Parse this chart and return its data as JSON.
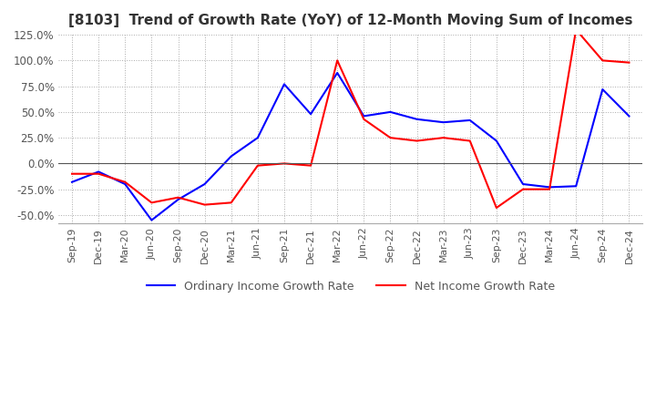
{
  "title": "[8103]  Trend of Growth Rate (YoY) of 12-Month Moving Sum of Incomes",
  "title_fontsize": 11,
  "ylim": [
    -0.58,
    0.145
  ],
  "yticks": [
    -0.5,
    -0.25,
    0.0,
    0.25,
    0.5,
    0.75,
    1.0,
    1.25
  ],
  "background_color": "#ffffff",
  "grid_color": "#aaaaaa",
  "ordinary_color": "#0000ff",
  "net_color": "#ff0000",
  "legend_labels": [
    "Ordinary Income Growth Rate",
    "Net Income Growth Rate"
  ],
  "dates": [
    "Sep-19",
    "Dec-19",
    "Mar-20",
    "Jun-20",
    "Sep-20",
    "Dec-20",
    "Mar-21",
    "Jun-21",
    "Sep-21",
    "Dec-21",
    "Mar-22",
    "Jun-22",
    "Sep-22",
    "Dec-22",
    "Mar-23",
    "Jun-23",
    "Sep-23",
    "Dec-23",
    "Mar-24",
    "Jun-24",
    "Sep-24",
    "Dec-24"
  ],
  "ordinary": [
    -0.18,
    -0.08,
    -0.2,
    -0.55,
    -0.35,
    -0.2,
    0.07,
    0.25,
    0.77,
    0.48,
    0.88,
    0.46,
    0.5,
    0.43,
    0.4,
    0.42,
    0.22,
    -0.2,
    -0.23,
    -0.22,
    0.72,
    0.46
  ],
  "net": [
    -0.1,
    -0.1,
    -0.18,
    -0.38,
    -0.33,
    -0.4,
    -0.38,
    -0.02,
    0.0,
    -0.02,
    1.0,
    0.43,
    0.25,
    0.22,
    0.25,
    0.22,
    -0.43,
    -0.25,
    -0.25,
    1.3,
    1.0,
    0.98
  ]
}
